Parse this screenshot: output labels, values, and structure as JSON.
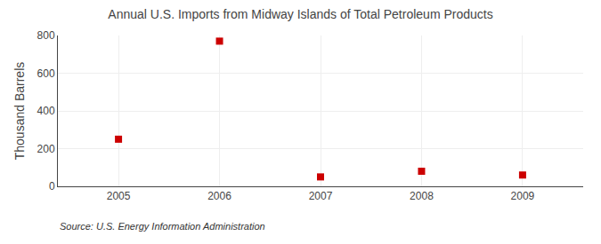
{
  "chart_data": {
    "type": "scatter",
    "title": "Annual U.S. Imports from Midway Islands of Total Petroleum Products",
    "ylabel": "Thousand Barrels",
    "annotations": [
      "Source: U.S. Energy Information Administration"
    ],
    "x": [
      2005,
      2006,
      2007,
      2008,
      2009
    ],
    "values": [
      250,
      770,
      50,
      80,
      60
    ],
    "color": "#cc0000",
    "marker": "square",
    "xlim": [
      2004.4,
      2009.6
    ],
    "xticks": [
      2005,
      2006,
      2007,
      2008,
      2009
    ],
    "ylim": [
      0,
      800
    ],
    "yticks": [
      0,
      200,
      400,
      600,
      800
    ],
    "grid": true
  }
}
